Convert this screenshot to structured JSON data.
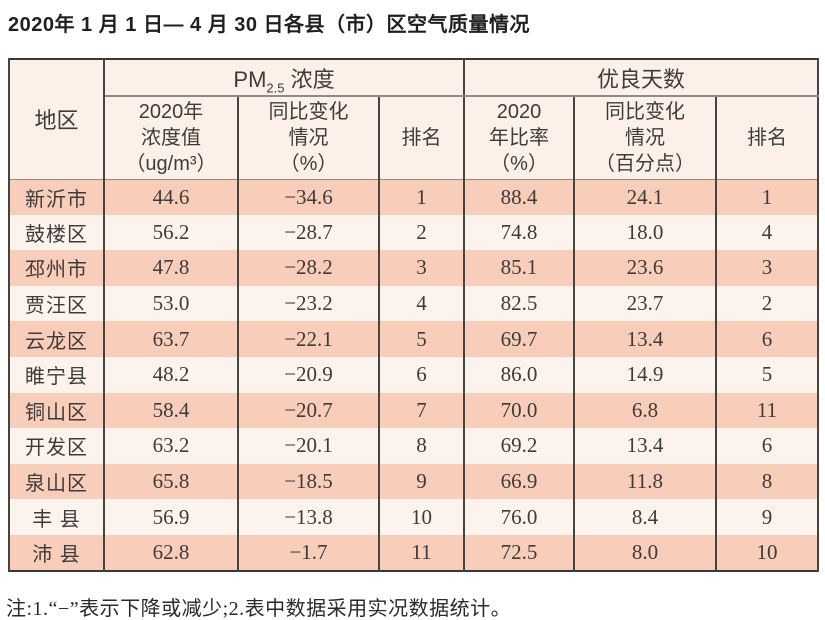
{
  "page": {
    "title": "2020年 1 月 1 日— 4 月 30 日各县（市）区空气质量情况",
    "note": "注:1.“−”表示下降或减少;2.表中数据采用实况数据统计。"
  },
  "colors": {
    "row_odd": "#f8cdb9",
    "row_even": "#fdf3ed",
    "header_bg": "#fcf0e8",
    "border_dark": "#47433f",
    "border_outer": "#3a3836",
    "line_gray": "#8e8b86",
    "text": "#3e3b39"
  },
  "table": {
    "header": {
      "region": "地区",
      "pm25": {
        "prefix": "PM",
        "sub": "2.5",
        "suffix": " 浓度"
      },
      "good_days": "优良天数",
      "subs": [
        "2020年\n浓度值\n（ug/m³）",
        "同比变化\n情况\n（%）",
        "排名",
        "2020\n年比率\n（%）",
        "同比变化\n情况\n（百分点）",
        "排名"
      ]
    },
    "rows": [
      {
        "region": "新沂市",
        "pm_value": "44.6",
        "pm_change": "−34.6",
        "pm_rank": "1",
        "gd_rate": "88.4",
        "gd_change": "24.1",
        "gd_rank": "1"
      },
      {
        "region": "鼓楼区",
        "pm_value": "56.2",
        "pm_change": "−28.7",
        "pm_rank": "2",
        "gd_rate": "74.8",
        "gd_change": "18.0",
        "gd_rank": "4"
      },
      {
        "region": "邳州市",
        "pm_value": "47.8",
        "pm_change": "−28.2",
        "pm_rank": "3",
        "gd_rate": "85.1",
        "gd_change": "23.6",
        "gd_rank": "3"
      },
      {
        "region": "贾汪区",
        "pm_value": "53.0",
        "pm_change": "−23.2",
        "pm_rank": "4",
        "gd_rate": "82.5",
        "gd_change": "23.7",
        "gd_rank": "2"
      },
      {
        "region": "云龙区",
        "pm_value": "63.7",
        "pm_change": "−22.1",
        "pm_rank": "5",
        "gd_rate": "69.7",
        "gd_change": "13.4",
        "gd_rank": "6"
      },
      {
        "region": "睢宁县",
        "pm_value": "48.2",
        "pm_change": "−20.9",
        "pm_rank": "6",
        "gd_rate": "86.0",
        "gd_change": "14.9",
        "gd_rank": "5"
      },
      {
        "region": "铜山区",
        "pm_value": "58.4",
        "pm_change": "−20.7",
        "pm_rank": "7",
        "gd_rate": "70.0",
        "gd_change": "6.8",
        "gd_rank": "11"
      },
      {
        "region": "开发区",
        "pm_value": "63.2",
        "pm_change": "−20.1",
        "pm_rank": "8",
        "gd_rate": "69.2",
        "gd_change": "13.4",
        "gd_rank": "6"
      },
      {
        "region": "泉山区",
        "pm_value": "65.8",
        "pm_change": "−18.5",
        "pm_rank": "9",
        "gd_rate": "66.9",
        "gd_change": "11.8",
        "gd_rank": "8"
      },
      {
        "region": "丰 县",
        "pm_value": "56.9",
        "pm_change": "−13.8",
        "pm_rank": "10",
        "gd_rate": "76.0",
        "gd_change": "8.4",
        "gd_rank": "9"
      },
      {
        "region": "沛 县",
        "pm_value": "62.8",
        "pm_change": "−1.7",
        "pm_rank": "11",
        "gd_rate": "72.5",
        "gd_change": "8.0",
        "gd_rank": "10"
      }
    ]
  }
}
